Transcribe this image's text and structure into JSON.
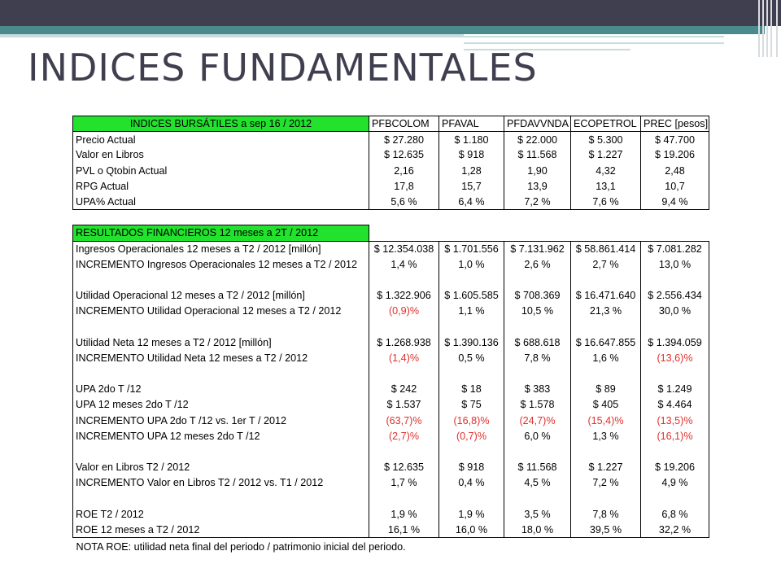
{
  "slide": {
    "title": "INDICES FUNDAMENTALES"
  },
  "colors": {
    "header_green": "#22e22e",
    "negative_red": "#e0302c",
    "title_dark": "#3f3f4f",
    "accent_teal": "#4a8a8c"
  },
  "table1": {
    "header": "INDICES BURSÁTILES a sep 16 / 2012",
    "columns": [
      "PFBCOLOM",
      "PFAVAL",
      "PFDAVVNDA",
      "ECOPETROL",
      "PREC [pesos]"
    ],
    "rows": [
      {
        "label": "Precio Actual",
        "values": [
          "$ 27.280",
          "$ 1.180",
          "$ 22.000",
          "$ 5.300",
          "$ 47.700"
        ]
      },
      {
        "label": "Valor en Libros",
        "values": [
          "$ 12.635",
          "$ 918",
          "$ 11.568",
          "$ 1.227",
          "$ 19.206"
        ]
      },
      {
        "label": "PVL o Qtobin Actual",
        "values": [
          "2,16",
          "1,28",
          "1,90",
          "4,32",
          "2,48"
        ]
      },
      {
        "label": "RPG Actual",
        "values": [
          "17,8",
          "15,7",
          "13,9",
          "13,1",
          "10,7"
        ]
      },
      {
        "label": "UPA% Actual",
        "values": [
          "5,6 %",
          "6,4 %",
          "7,2 %",
          "7,6 %",
          "9,4 %"
        ]
      }
    ]
  },
  "table2": {
    "header": "RESULTADOS FINANCIEROS     12 meses a      2T / 2012",
    "rows": [
      {
        "label": "Ingresos Operacionales 12 meses a T2 / 2012  [millón]",
        "values": [
          "$ 12.354.038",
          "$ 1.701.556",
          "$ 7.131.962",
          "$ 58.861.414",
          "$ 7.081.282"
        ]
      },
      {
        "label": "INCREMENTO Ingresos Operacionales 12 meses a T2 / 2012",
        "values": [
          "1,4 %",
          "1,0 %",
          "2,6 %",
          "2,7 %",
          "13,0 %"
        ]
      },
      {
        "label": "Utilidad Operacional 12 meses a T2 / 2012  [millón]",
        "values": [
          "$ 1.322.906",
          "$ 1.605.585",
          "$ 708.369",
          "$ 16.471.640",
          "$ 2.556.434"
        ]
      },
      {
        "label": "INCREMENTO Utilidad Operacional 12 meses a T2 / 2012",
        "values": [
          "(0,9)%",
          "1,1 %",
          "10,5 %",
          "21,3 %",
          "30,0 %"
        ]
      },
      {
        "label": "Utilidad Neta 12 meses a T2 / 2012  [millón]",
        "values": [
          "$ 1.268.938",
          "$ 1.390.136",
          "$ 688.618",
          "$ 16.647.855",
          "$ 1.394.059"
        ]
      },
      {
        "label": "INCREMENTO Utilidad Neta 12 meses a T2 / 2012",
        "values": [
          "(1,4)%",
          "0,5 %",
          "7,8 %",
          "1,6 %",
          "(13,6)%"
        ]
      },
      {
        "label": "UPA 2do T /12",
        "values": [
          "$ 242",
          "$ 18",
          "$ 383",
          "$ 89",
          "$ 1.249"
        ]
      },
      {
        "label": "UPA 12 meses 2do T /12",
        "values": [
          "$ 1.537",
          "$ 75",
          "$ 1.578",
          "$ 405",
          "$ 4.464"
        ]
      },
      {
        "label": "INCREMENTO UPA 2do T /12 vs. 1er T / 2012",
        "values": [
          "(63,7)%",
          "(16,8)%",
          "(24,7)%",
          "(15,4)%",
          "(13,5)%"
        ]
      },
      {
        "label": "INCREMENTO UPA 12 meses 2do T /12",
        "values": [
          "(2,7)%",
          "(0,7)%",
          "6,0 %",
          "1,3 %",
          "(16,1)%"
        ]
      },
      {
        "label": "Valor en Libros T2 / 2012",
        "values": [
          "$ 12.635",
          "$ 918",
          "$ 11.568",
          "$ 1.227",
          "$ 19.206"
        ]
      },
      {
        "label": "INCREMENTO Valor en Libros T2 / 2012 vs. T1 / 2012",
        "values": [
          "1,7 %",
          "0,4 %",
          "4,5 %",
          "7,2 %",
          "4,9 %"
        ]
      },
      {
        "label": "ROE T2 / 2012",
        "values": [
          "1,9 %",
          "1,9 %",
          "3,5 %",
          "7,8 %",
          "6,8 %"
        ]
      },
      {
        "label": "ROE 12 meses a T2 / 2012",
        "values": [
          "16,1 %",
          "16,0 %",
          "18,0 %",
          "39,5 %",
          "32,2 %"
        ]
      }
    ],
    "gaps_before": [
      2,
      4,
      6,
      10,
      12
    ]
  },
  "note": "NOTA ROE: utilidad neta final del periodo / patrimonio inicial del periodo."
}
